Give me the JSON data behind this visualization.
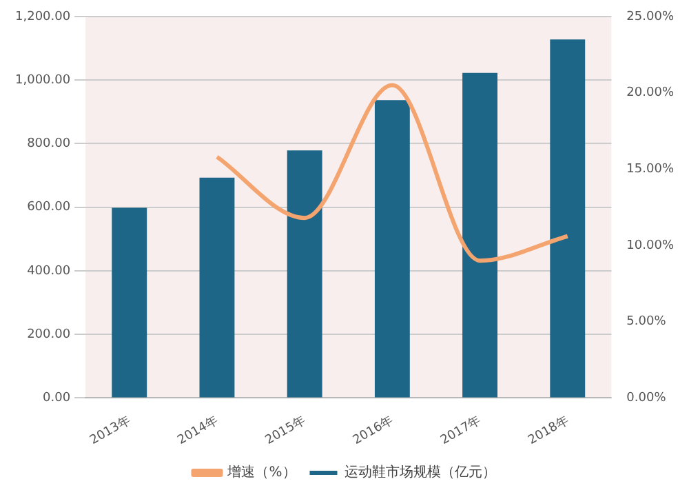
{
  "chart_data": {
    "type": "bar",
    "categories": [
      "2013年",
      "2014年",
      "2015年",
      "2016年",
      "2017年",
      "2018年"
    ],
    "series": [
      {
        "name": "运动鞋市场规模（亿元）",
        "color": "#1d6688",
        "values": [
          598,
          693,
          779,
          937,
          1023,
          1128
        ]
      },
      {
        "name": "增速（%）",
        "type": "line",
        "axis": "y2",
        "color": "#f4a46e",
        "values": [
          null,
          15.8,
          11.8,
          20.5,
          9.0,
          10.6
        ]
      }
    ],
    "ylim": [
      0,
      1200
    ],
    "yticks": [
      {
        "value": 0,
        "label": "0.00"
      },
      {
        "value": 200,
        "label": "200.00"
      },
      {
        "value": 400,
        "label": "400.00"
      },
      {
        "value": 600,
        "label": "600.00"
      },
      {
        "value": 800,
        "label": "800.00"
      },
      {
        "value": 1000,
        "label": "1,000.00"
      },
      {
        "value": 1200,
        "label": "1,200.00"
      }
    ],
    "y2lim": [
      0,
      25
    ],
    "y2ticks": [
      {
        "value": 0,
        "label": "0.00%"
      },
      {
        "value": 5,
        "label": "5.00%"
      },
      {
        "value": 10,
        "label": "10.00%"
      },
      {
        "value": 15,
        "label": "15.00%"
      },
      {
        "value": 20,
        "label": "20.00%"
      },
      {
        "value": 25,
        "label": "25.00%"
      }
    ],
    "grid": "y",
    "legend": "bottom",
    "marker": "none"
  }
}
